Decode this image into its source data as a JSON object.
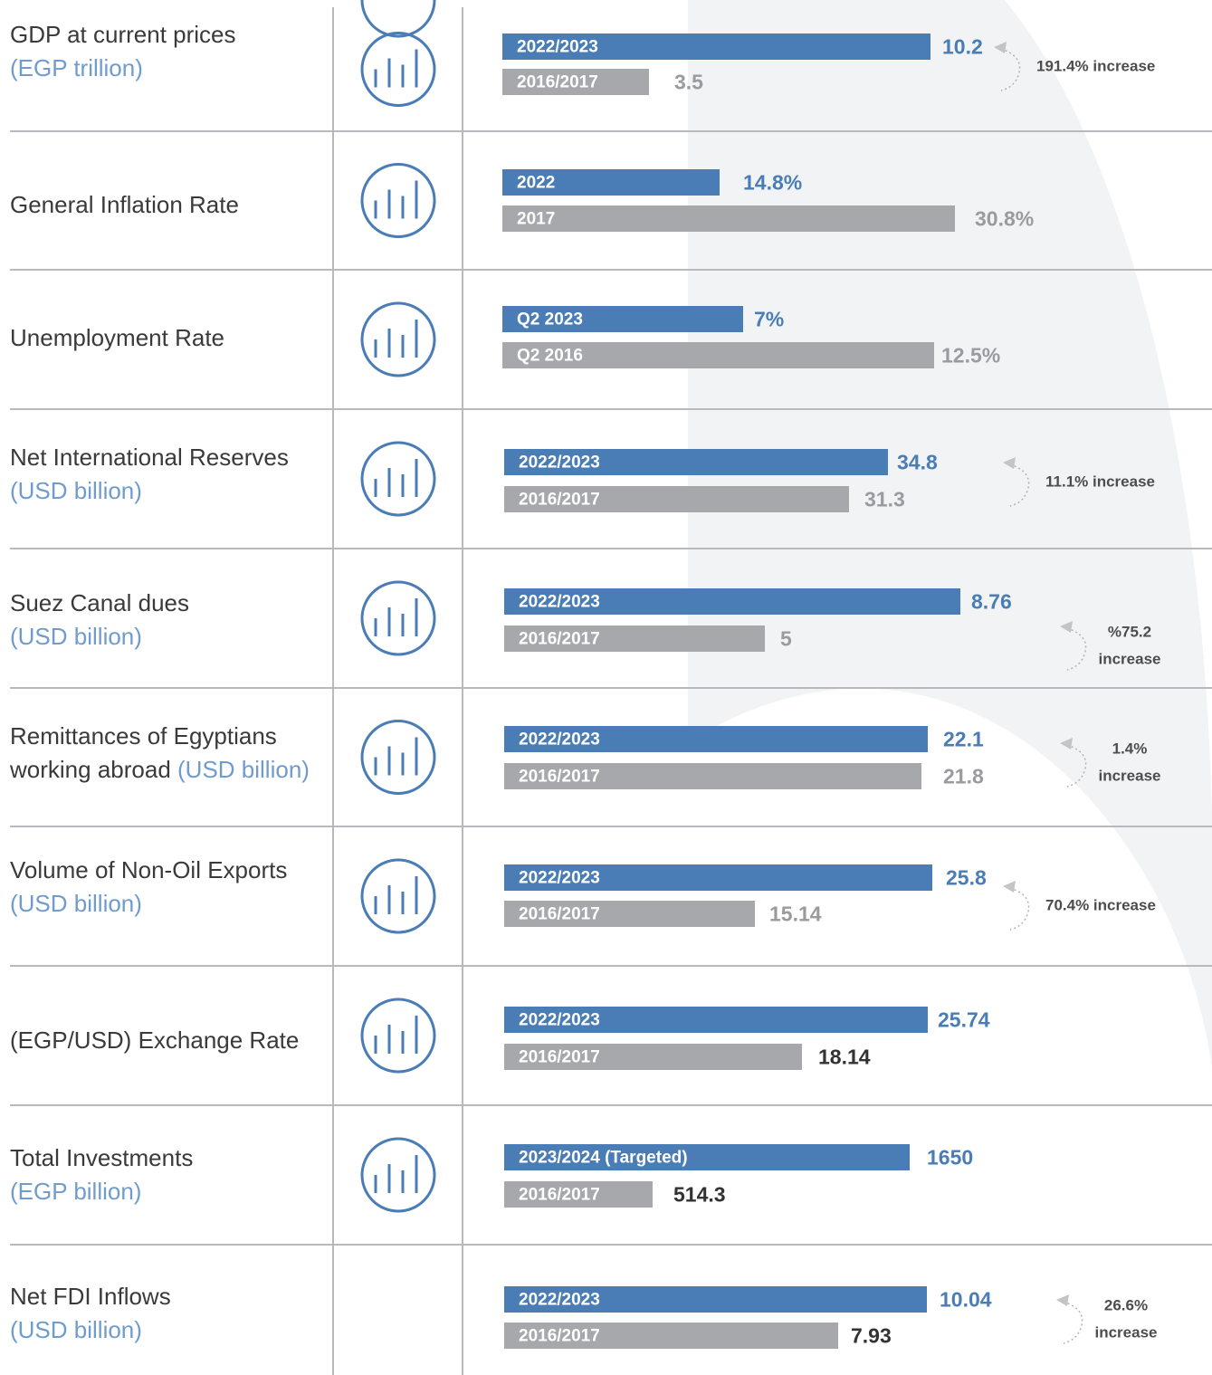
{
  "rows": [
    {
      "title": "GDP at current prices",
      "unit": "(EGP trillion)",
      "bars": [
        {
          "label": "2022/2023",
          "value": "10.2"
        },
        {
          "label": "2016/2017",
          "value": "3.5"
        }
      ],
      "note": [
        "191.4% increase"
      ]
    },
    {
      "title": "General Inflation Rate",
      "bars": [
        {
          "label": "2022",
          "value": "14.8%"
        },
        {
          "label": "2017",
          "value": "30.8%"
        }
      ]
    },
    {
      "title": "Unemployment Rate",
      "bars": [
        {
          "label": "Q2 2023",
          "value": "7%"
        },
        {
          "label": "Q2 2016",
          "value": "12.5%"
        }
      ]
    },
    {
      "title": "Net International Reserves",
      "unit": "(USD billion)",
      "bars": [
        {
          "label": "2022/2023",
          "value": "34.8"
        },
        {
          "label": "2016/2017",
          "value": "31.3"
        }
      ],
      "note": [
        "11.1% increase"
      ]
    },
    {
      "title": "Suez Canal dues",
      "unit": "(USD billion)",
      "bars": [
        {
          "label": "2022/2023",
          "value": "8.76"
        },
        {
          "label": "2016/2017",
          "value": "5"
        }
      ],
      "note": [
        "%75.2",
        "increase"
      ]
    },
    {
      "title": "Remittances of Egyptians working abroad",
      "unit": "(USD billion)",
      "bars": [
        {
          "label": "2022/2023",
          "value": "22.1"
        },
        {
          "label": "2016/2017",
          "value": "21.8"
        }
      ],
      "note": [
        "1.4%",
        "increase"
      ]
    },
    {
      "title": "Volume of Non-Oil Exports",
      "unit": "(USD billion)",
      "bars": [
        {
          "label": "2022/2023",
          "value": "25.8"
        },
        {
          "label": "2016/2017",
          "value": "15.14"
        }
      ],
      "note": [
        "70.4% increase"
      ]
    },
    {
      "title": "(EGP/USD) Exchange Rate",
      "bars": [
        {
          "label": "2022/2023",
          "value": "25.74"
        },
        {
          "label": "2016/2017",
          "value": "18.14"
        }
      ]
    },
    {
      "title": "Total Investments",
      "unit": "(EGP billion)",
      "bars": [
        {
          "label": "2023/2024 (Targeted)",
          "value": "1650"
        },
        {
          "label": "2016/2017",
          "value": "514.3"
        }
      ]
    },
    {
      "title": "Net FDI Inflows",
      "unit": "(USD billion)",
      "bars": [
        {
          "label": "2022/2023",
          "value": "10.04"
        },
        {
          "label": "2016/2017",
          "value": "7.93"
        }
      ],
      "note": [
        "26.6%",
        "increase"
      ]
    }
  ]
}
